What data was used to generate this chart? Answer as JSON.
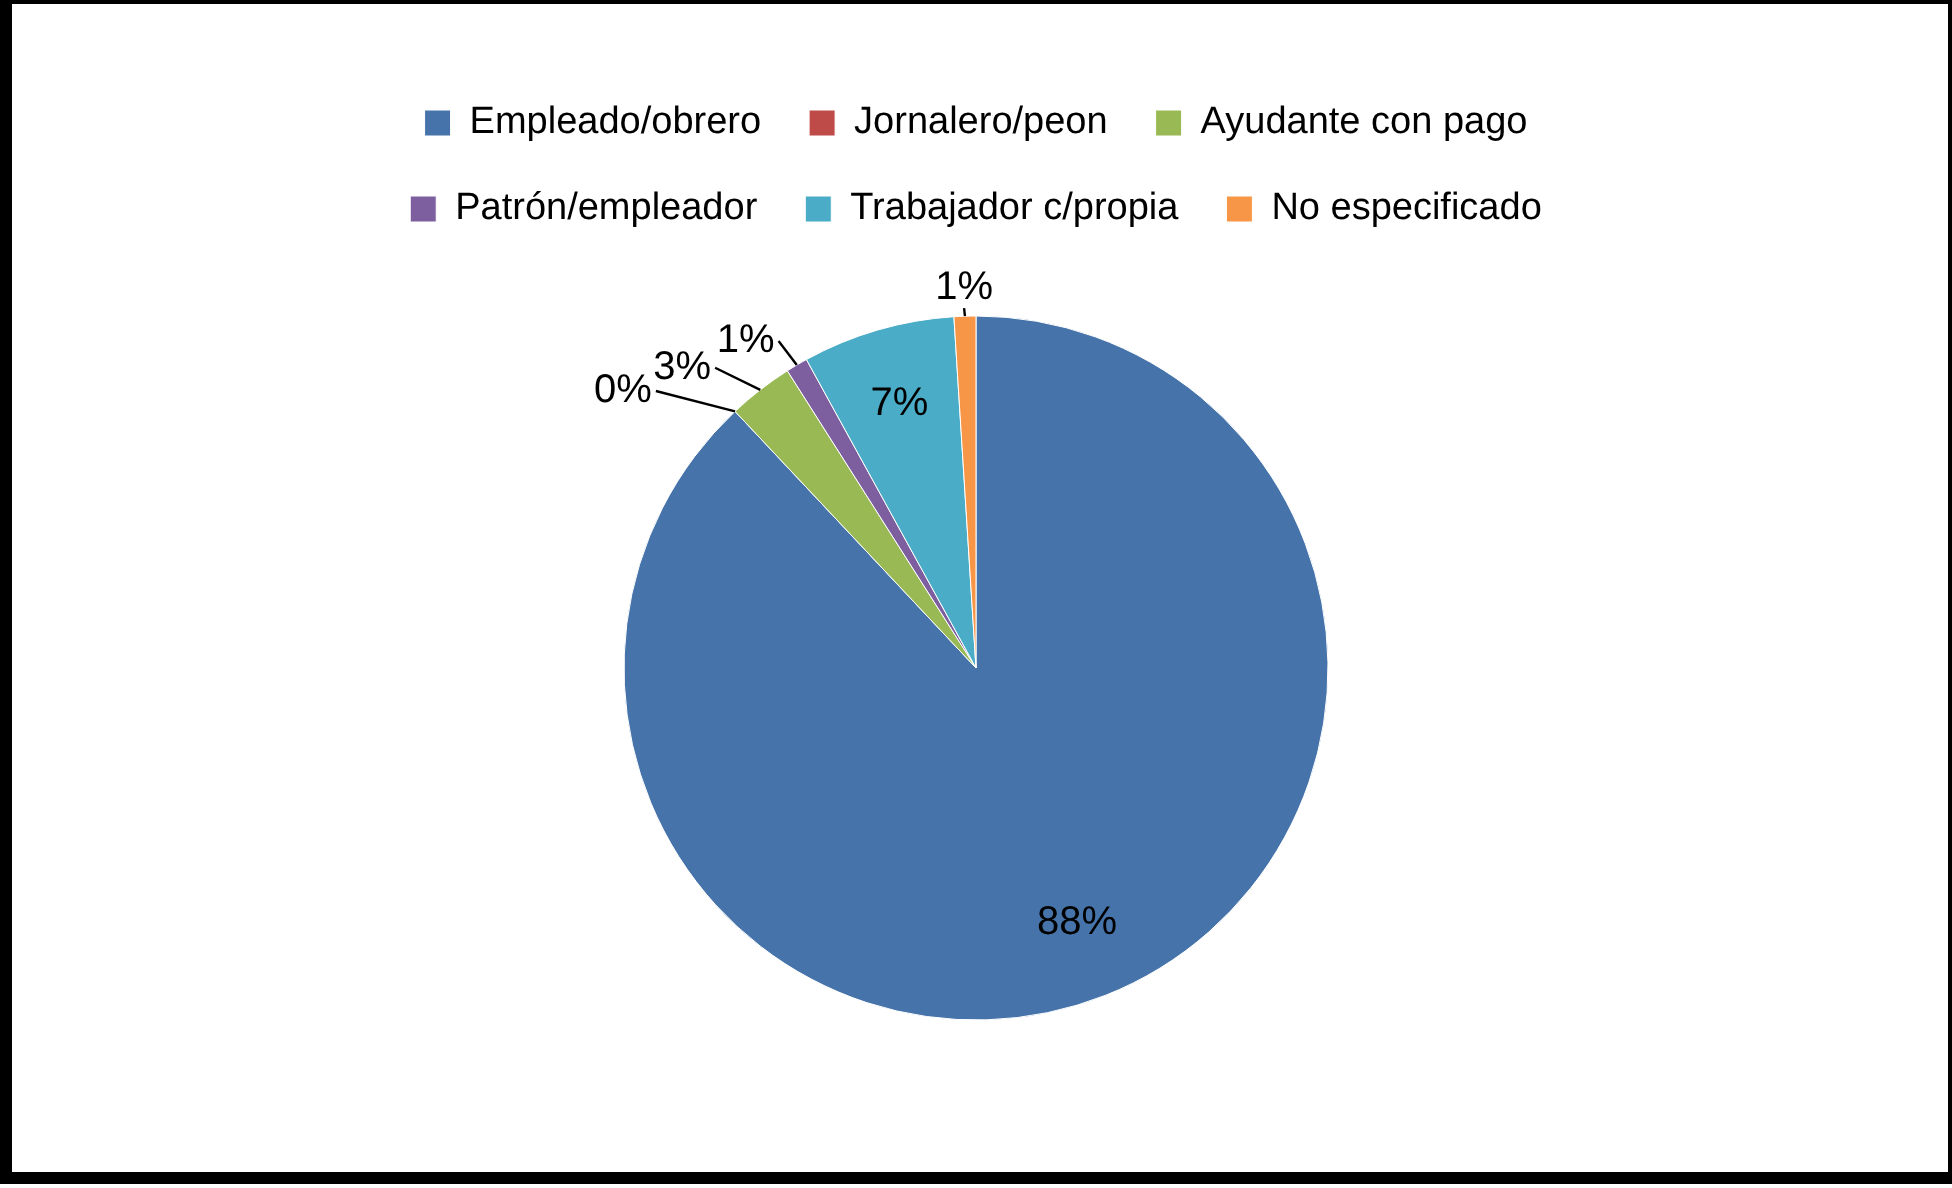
{
  "chart_data": {
    "type": "pie",
    "categories": [
      "Empleado/obrero",
      "Jornalero/peon",
      "Ayudante con pago",
      "Patrón/empleador",
      "Trabajador c/propia",
      "No especificado"
    ],
    "values": [
      88,
      0,
      3,
      1,
      7,
      1
    ],
    "colors": [
      "#4674aa",
      "#be4b48",
      "#98b954",
      "#7d5fa0",
      "#4aacc6",
      "#f79646"
    ],
    "value_labels": [
      "88%",
      "0%",
      "3%",
      "1%",
      "7%",
      "1%"
    ],
    "data_labels": true,
    "legend": "top"
  }
}
